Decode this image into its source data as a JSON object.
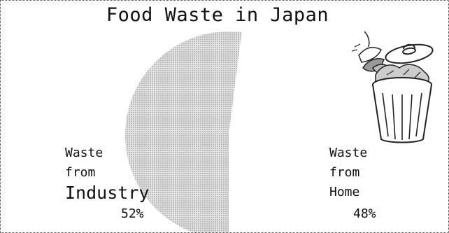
{
  "chart_data": {
    "type": "pie",
    "title": "Food Waste in Japan",
    "slices": [
      {
        "name_lines": [
          "Waste",
          "from",
          "Industry"
        ],
        "value": 52,
        "value_label": "52%"
      },
      {
        "name_lines": [
          "Waste",
          "from",
          "Home"
        ],
        "value": 48,
        "value_label": "48%"
      }
    ]
  },
  "icons": {
    "illustration": "trash-can-icon"
  }
}
